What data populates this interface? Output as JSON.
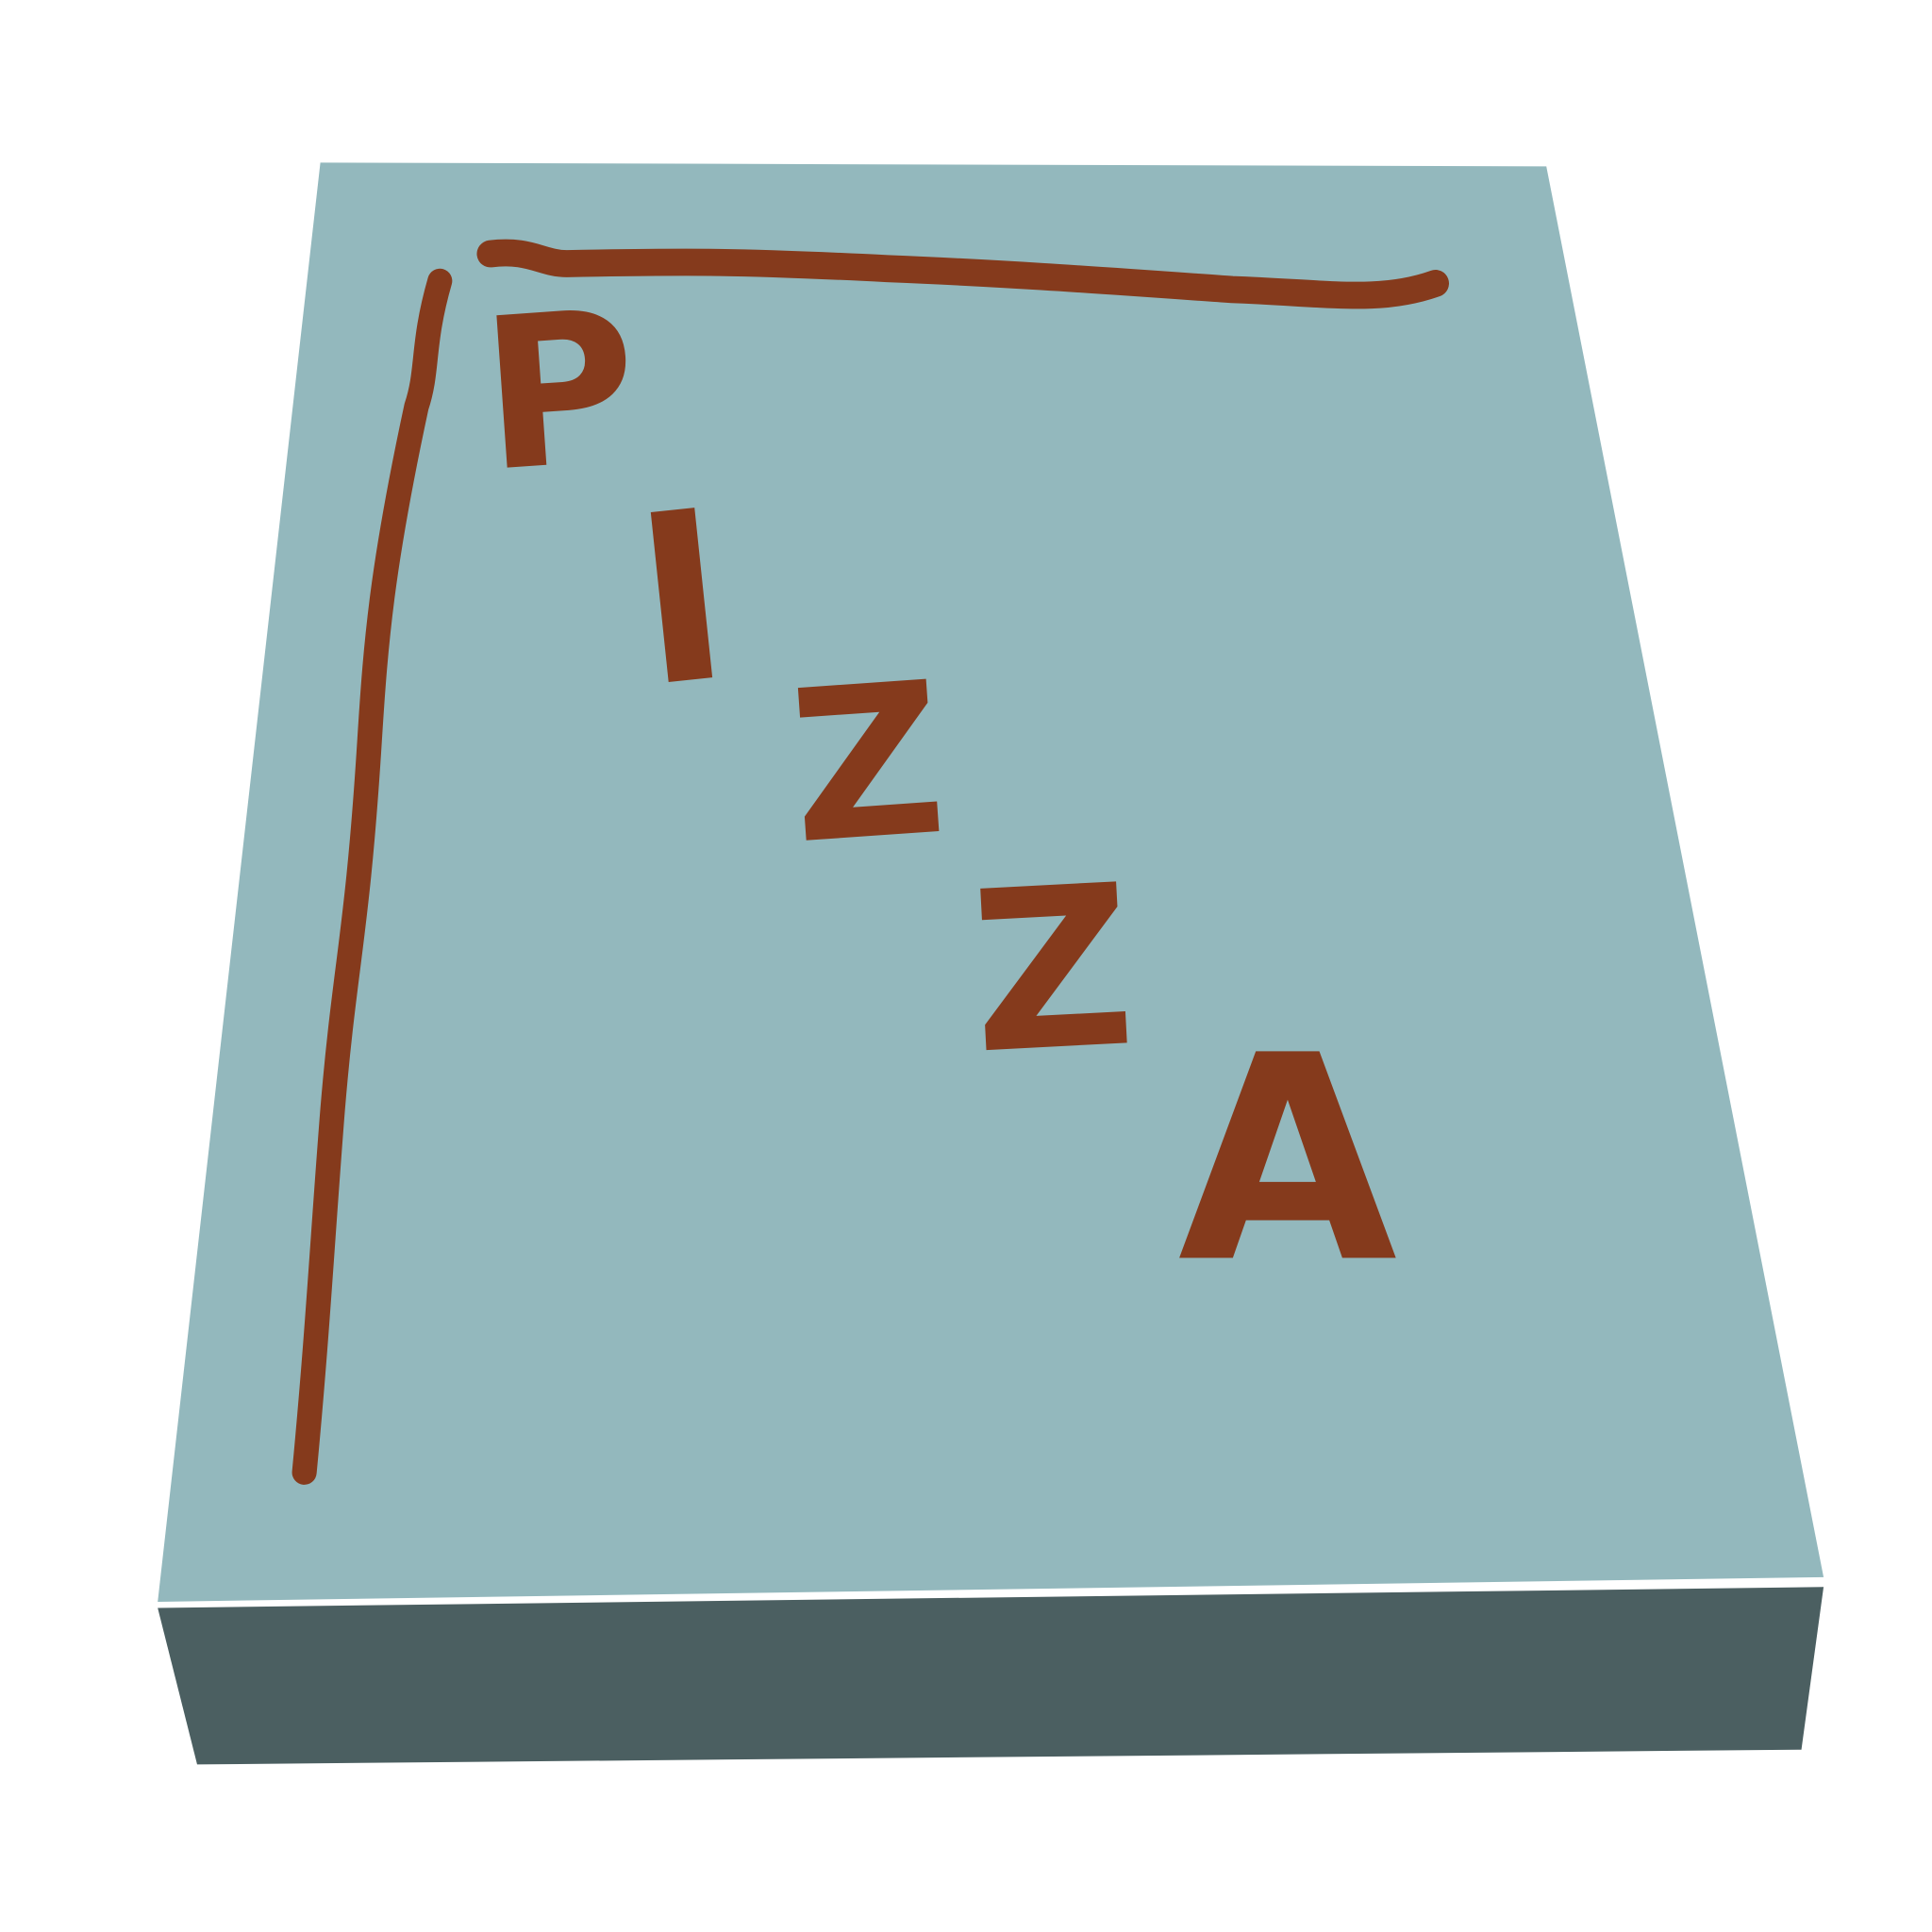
{
  "box_lid": {
    "letters": [
      "P",
      "I",
      "Z",
      "Z",
      "A"
    ]
  }
}
